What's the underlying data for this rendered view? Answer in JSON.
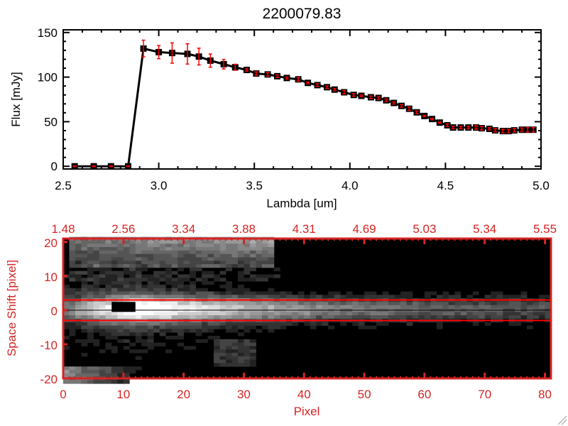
{
  "chart_data": [
    {
      "type": "line",
      "title": "2200079.83",
      "xlabel": "Lambda [um]",
      "ylabel": "Flux [mJy]",
      "xlim": [
        2.5,
        5.0
      ],
      "ylim": [
        -3,
        153
      ],
      "xticks": [
        "2.5",
        "3.0",
        "3.5",
        "4.0",
        "4.5",
        "5.0"
      ],
      "xtick_values": [
        2.5,
        3.0,
        3.5,
        4.0,
        4.5,
        5.0
      ],
      "yticks": [
        "0",
        "50",
        "100",
        "150"
      ],
      "ytick_values": [
        0,
        50,
        100,
        150
      ],
      "line_color": "#000000",
      "errorbar_color": "#ff0000",
      "series": [
        {
          "name": "flux",
          "x": [
            2.56,
            2.66,
            2.75,
            2.84,
            2.92,
            3.0,
            3.07,
            3.15,
            3.21,
            3.27,
            3.34,
            3.4,
            3.46,
            3.51,
            3.57,
            3.62,
            3.67,
            3.73,
            3.78,
            3.83,
            3.88,
            3.92,
            3.97,
            4.02,
            4.06,
            4.11,
            4.15,
            4.19,
            4.23,
            4.27,
            4.31,
            4.35,
            4.39,
            4.43,
            4.47,
            4.51,
            4.54,
            4.58,
            4.62,
            4.66,
            4.69,
            4.73,
            4.76,
            4.8,
            4.83,
            4.86,
            4.9,
            4.93,
            4.96
          ],
          "y": [
            0,
            0,
            0,
            0,
            132,
            128,
            127,
            126,
            123,
            118.5,
            114.5,
            111,
            108,
            104,
            103,
            101,
            99,
            97.5,
            93.5,
            91,
            88.7,
            86,
            83,
            80,
            79,
            77.4,
            76.6,
            74,
            71,
            67.7,
            64.5,
            60.5,
            56.4,
            53,
            49,
            46,
            43.5,
            43.5,
            43.5,
            43.5,
            42.7,
            42,
            40.3,
            39.5,
            39.5,
            40.3,
            41,
            41,
            41
          ],
          "yerr": [
            0,
            0,
            0,
            0,
            9,
            7,
            11,
            11,
            9,
            7,
            5,
            3,
            1,
            1.5,
            1.5,
            1,
            0.8,
            1.5,
            0.5,
            1,
            1,
            0.8,
            1.5,
            1,
            0.5,
            1,
            1,
            1,
            0.8,
            1,
            1.5,
            1,
            0.3,
            0.3,
            0.3,
            1,
            1,
            1,
            1,
            1.5,
            1.5,
            0.8,
            1.5,
            1.5,
            1.5,
            1.5,
            1.5,
            2,
            2
          ]
        }
      ]
    },
    {
      "type": "heatmap",
      "xlabel": "Pixel",
      "ylabel": "Space Shift [pixel]",
      "xlim": [
        0,
        81
      ],
      "ylim": [
        -20,
        21
      ],
      "xticks": [
        "0",
        "10",
        "20",
        "30",
        "40",
        "50",
        "60",
        "70",
        "80"
      ],
      "xtick_values": [
        0,
        10,
        20,
        30,
        40,
        50,
        60,
        70,
        80
      ],
      "yticks": [
        "20",
        "10",
        "0",
        "-10",
        "-20"
      ],
      "ytick_values": [
        20,
        10,
        0,
        -10,
        -20
      ],
      "top_axis_ticks": [
        "1.48",
        "2.56",
        "3.34",
        "3.88",
        "4.31",
        "4.69",
        "5.03",
        "5.34",
        "5.55"
      ],
      "axis_color": "#d42424",
      "aperture_lines": [
        3,
        -3
      ],
      "center_line": 0,
      "image_model": {
        "nx": 81,
        "ny": 43,
        "trace_center": 0.3,
        "trace_sigma": 2.6,
        "trace_peak_pixel": 12,
        "trace_peak": 255,
        "trace_end": 55,
        "saturated_spot": {
          "x": [
            8,
            12
          ],
          "y": [
            0,
            2
          ]
        },
        "upper_arc": {
          "x": [
            1,
            35
          ],
          "y": [
            14,
            21
          ],
          "level": 170
        },
        "lower_patch": {
          "x": [
            0,
            14
          ],
          "y": [
            -21,
            -17
          ],
          "level": 140
        }
      }
    }
  ]
}
